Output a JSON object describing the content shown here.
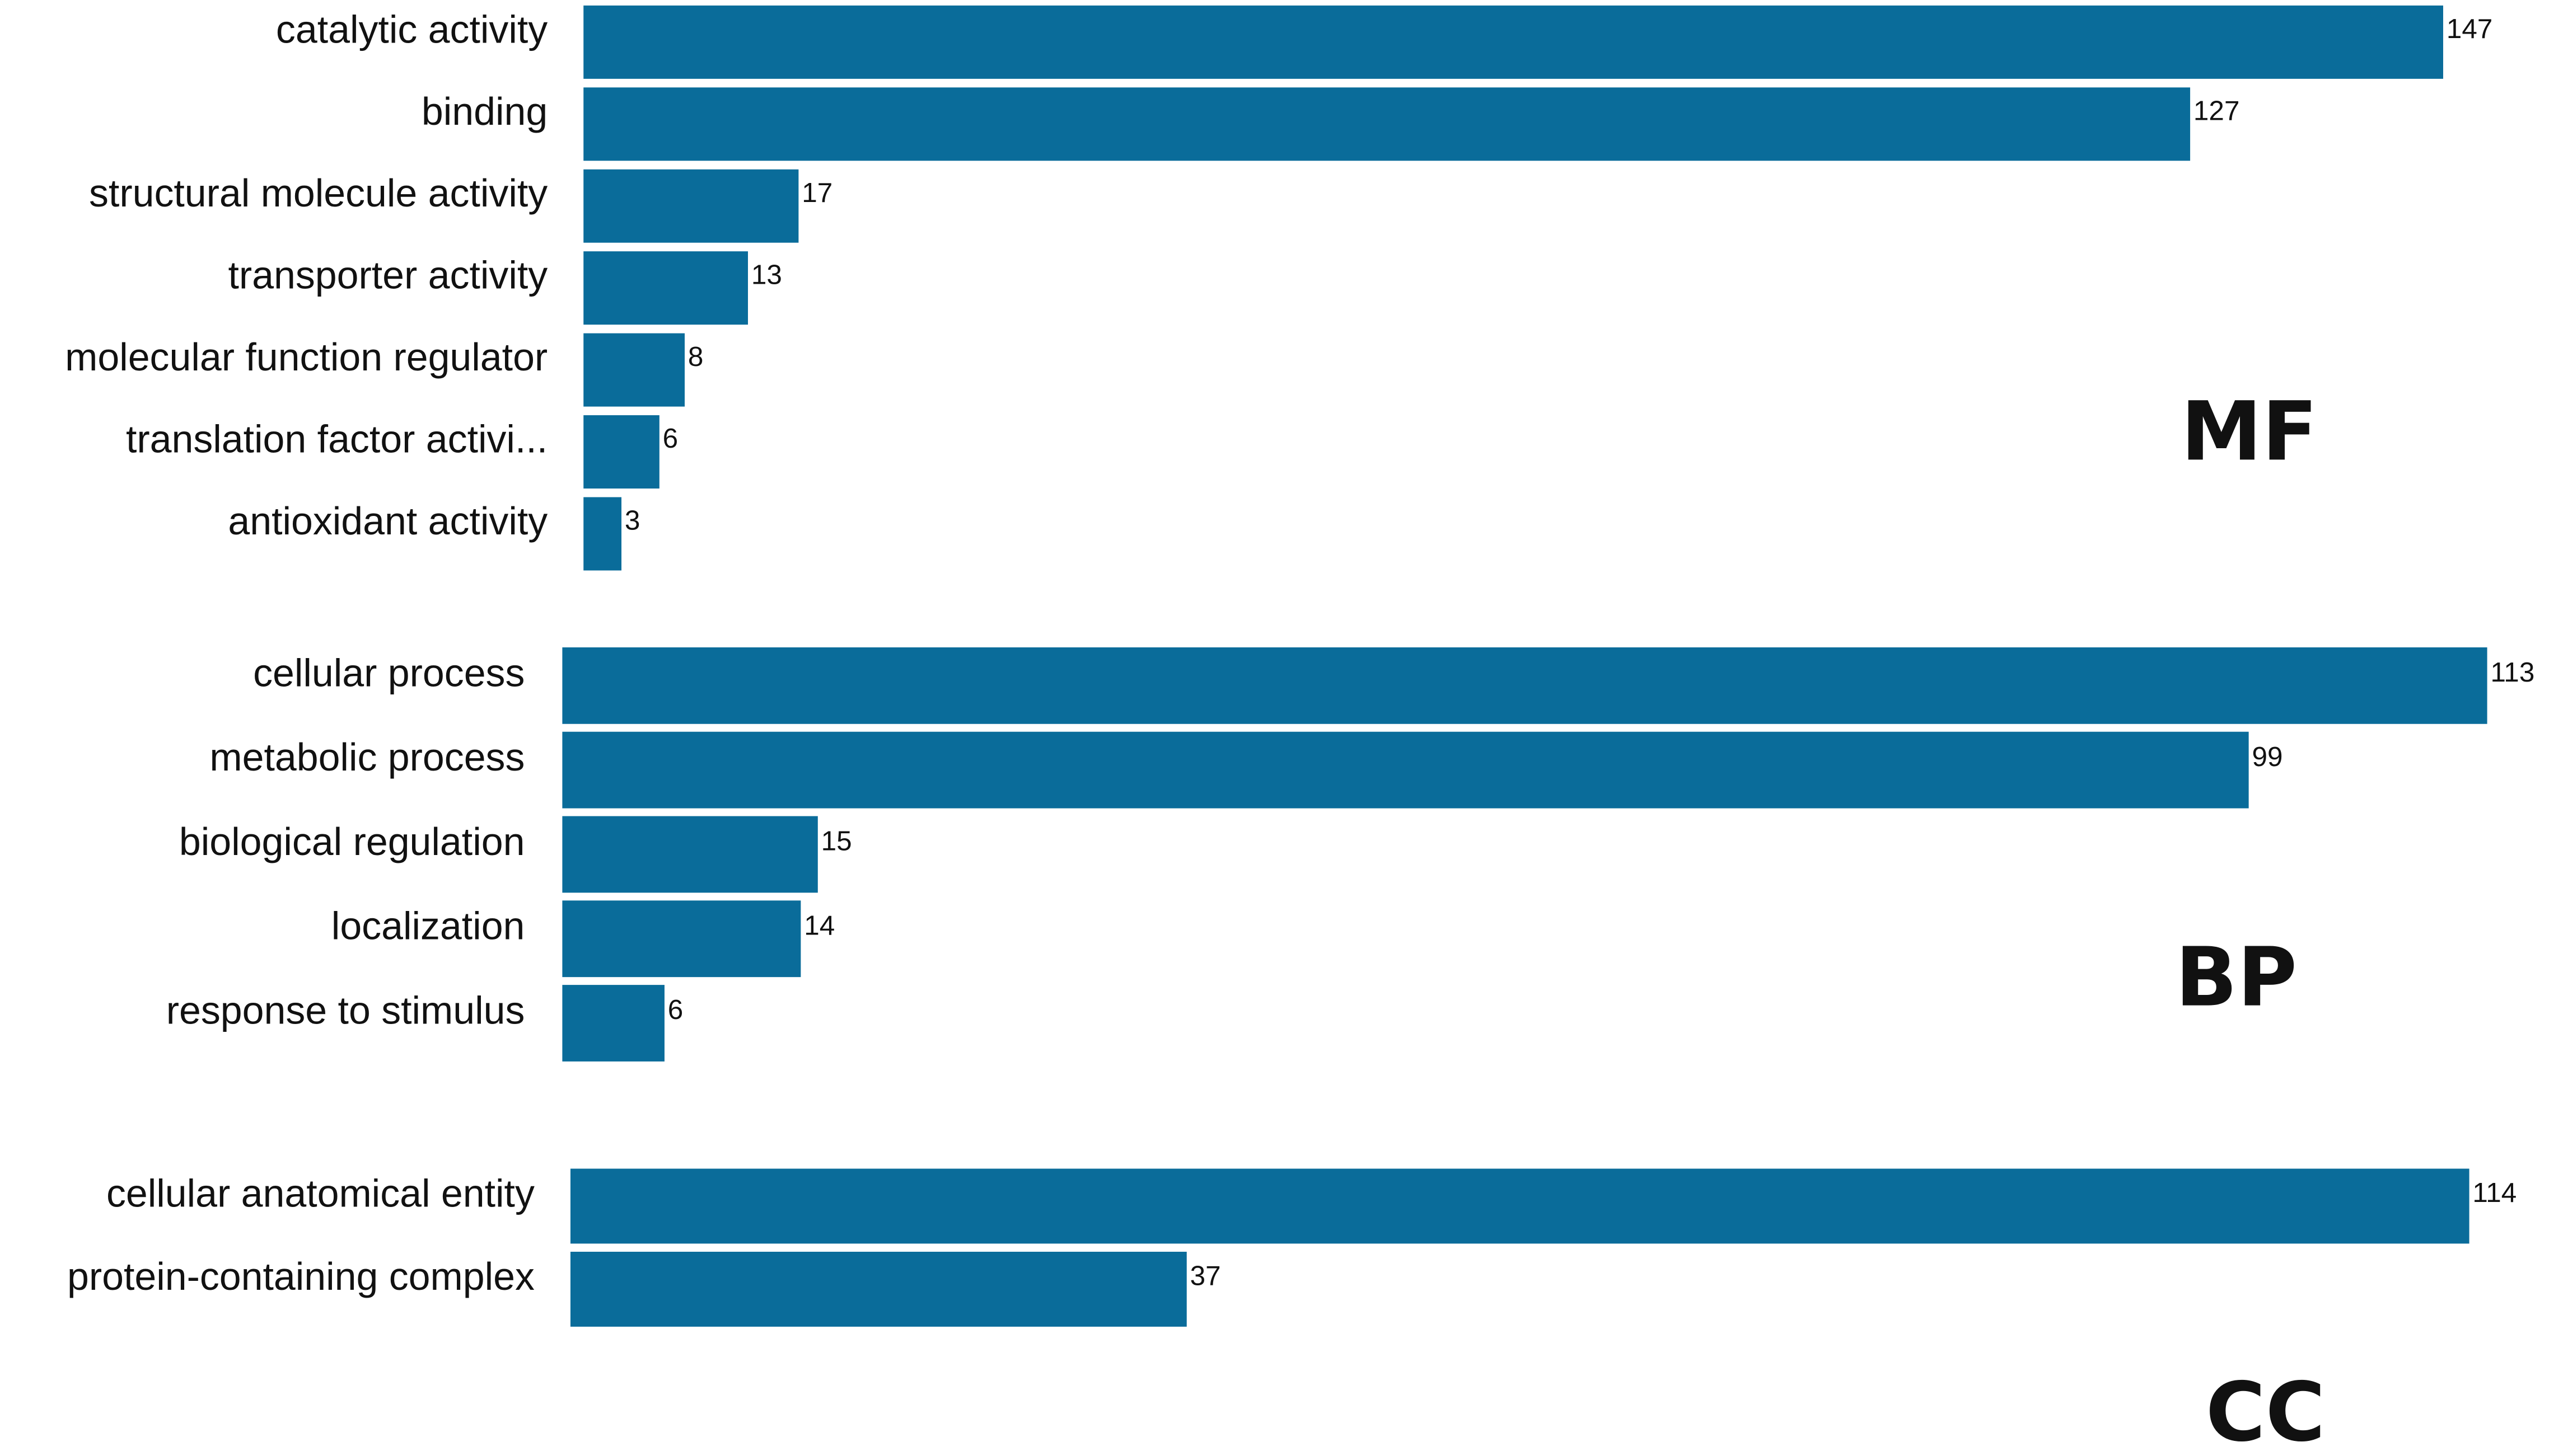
{
  "chart_data": [
    {
      "type": "bar",
      "orientation": "horizontal",
      "title": "MF",
      "color": "#0a6c9a",
      "categories": [
        "catalytic activity",
        "binding",
        "structural molecule activity",
        "transporter activity",
        "molecular function regulator",
        "translation factor activi...",
        "antioxidant activity"
      ],
      "values": [
        147,
        127,
        17,
        13,
        8,
        6,
        3
      ]
    },
    {
      "type": "bar",
      "orientation": "horizontal",
      "title": "BP",
      "color": "#0a6c9a",
      "categories": [
        "cellular process",
        "metabolic process",
        "biological regulation",
        "localization",
        "response to stimulus"
      ],
      "values": [
        113,
        99,
        15,
        14,
        6
      ]
    },
    {
      "type": "bar",
      "orientation": "horizontal",
      "title": "CC",
      "color": "#0a6c9a",
      "categories": [
        "cellular anatomical entity",
        "protein-containing complex"
      ],
      "values": [
        114,
        37
      ]
    }
  ]
}
